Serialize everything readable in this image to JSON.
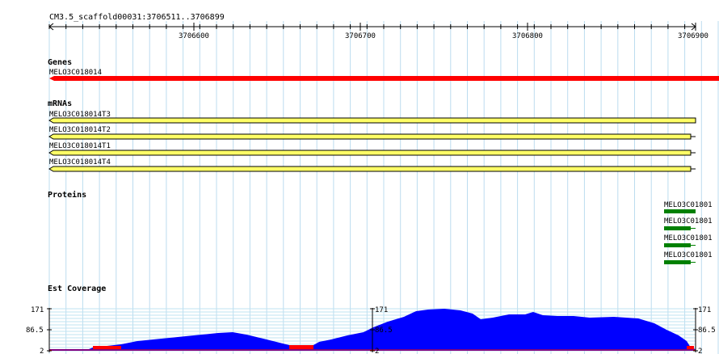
{
  "view": {
    "region_label": "CM3.5_scaffold00031:3706511..3706899",
    "ruler_ticks": [
      "3706600",
      "3706700",
      "3706800",
      "3706900"
    ]
  },
  "tracks": {
    "genes": {
      "title": "Genes",
      "features": [
        {
          "label": "MELO3C018014",
          "color": "#ff0000"
        }
      ]
    },
    "mrnas": {
      "title": "mRNAs",
      "features": [
        {
          "label": "MELO3C018014T3",
          "color": "#ffff66"
        },
        {
          "label": "MELO3C018014T2",
          "color": "#ffff66"
        },
        {
          "label": "MELO3C018014T1",
          "color": "#ffff66"
        },
        {
          "label": "MELO3C018014T4",
          "color": "#ffff66"
        }
      ]
    },
    "proteins": {
      "title": "Proteins",
      "features": [
        {
          "label": "MELO3C01801",
          "color": "#008000"
        },
        {
          "label": "MELO3C01801",
          "color": "#008000"
        },
        {
          "label": "MELO3C01801",
          "color": "#008000"
        },
        {
          "label": "MELO3C01801",
          "color": "#008000"
        }
      ]
    },
    "coverage": {
      "title": "Est Coverage",
      "scale_max": "171",
      "scale_mid": "86.5",
      "scale_min": "2",
      "fill_color": "#0000ff",
      "low_color": "#ff0000"
    }
  }
}
